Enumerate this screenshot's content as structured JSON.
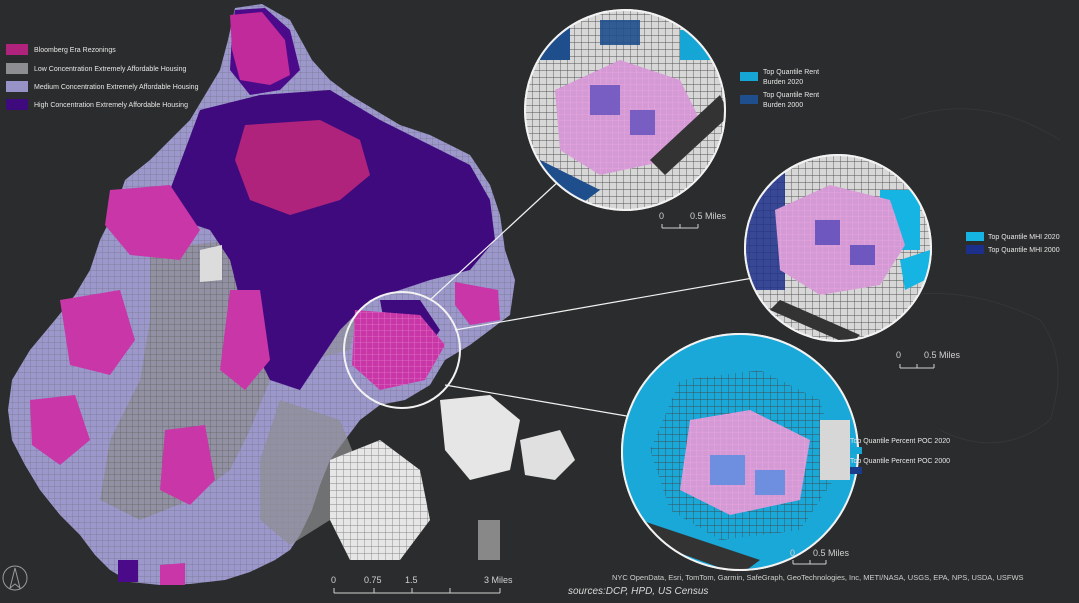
{
  "colors": {
    "background": "#2b2c2d",
    "rezonings": "#c936a8",
    "low_concentration": "#9a9a9e",
    "medium_concentration": "#9c98cc",
    "high_concentration": "#4a0a8a",
    "rent_2020": "#1aa9d8",
    "rent_2000": "#1f4e8c",
    "mhi_2020": "#18b7e6",
    "mhi_2000": "#1c2f8a",
    "poc_2020": "#19a8d8",
    "poc_2000": "#1a3a8a",
    "connector": "#f2f2f2"
  },
  "legend": {
    "items": [
      {
        "label": "Bloomberg Era Rezonings",
        "color": "#b0237d"
      },
      {
        "label": "Low Concentration Extremely Affordable Housing",
        "color": "#8e8e92"
      },
      {
        "label": "Medium Concentration Extremely Affordable Housing",
        "color": "#9893c7"
      },
      {
        "label": "High Concentration Extremely Affordable Housing",
        "color": "#3f0a7e"
      }
    ]
  },
  "insets": {
    "rent": {
      "legend": [
        {
          "label_line1": "Top Quantile Rent",
          "label_line2": "Burden 2020",
          "color": "#16a6d6"
        },
        {
          "label_line1": "Top Quantile Rent",
          "label_line2": "Burden 2000",
          "color": "#1f4e8c"
        }
      ],
      "scale": {
        "zero": "0",
        "half": "0.5 Miles"
      }
    },
    "mhi": {
      "legend": [
        {
          "label": "Top Quantile MHI 2020",
          "color": "#16b4e3"
        },
        {
          "label": "Top Quantile MHI 2000",
          "color": "#1c2f8a"
        }
      ],
      "scale": {
        "zero": "0",
        "half": "0.5 Miles"
      }
    },
    "poc": {
      "legend": [
        {
          "label": "Top Quantile Percent POC 2020",
          "color": "#16a6d6"
        },
        {
          "label": "Top Quantile Percent POC 2000",
          "color": "#1a3a8a"
        }
      ],
      "scale": {
        "zero": "0",
        "half": "0.5 Miles"
      }
    }
  },
  "main_scale": {
    "ticks": [
      "0",
      "0.75",
      "1.5",
      "3 Miles"
    ]
  },
  "credits": "NYC OpenData, Esri, TomTom, Garmin, SafeGraph, GeoTechnologies, Inc, METI/NASA, USGS, EPA, NPS, USDA, USFWS",
  "sources": "sources:DCP, HPD, US Census"
}
